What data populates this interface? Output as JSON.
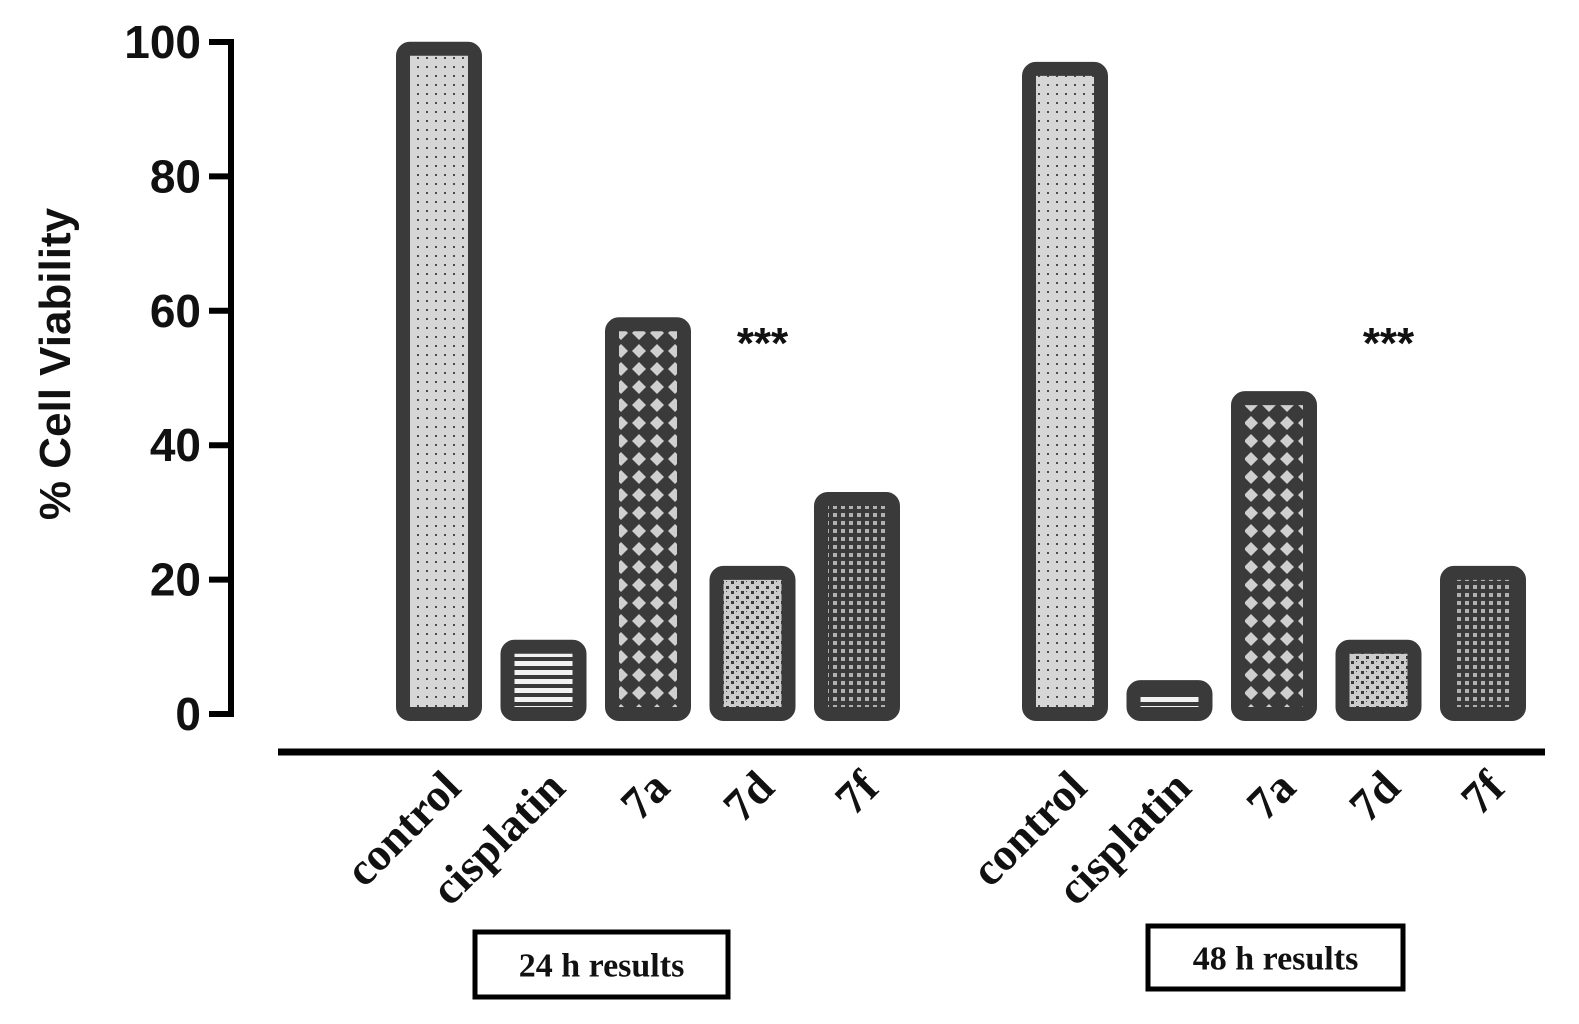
{
  "chart_data": {
    "type": "bar",
    "title": "",
    "xlabel": "",
    "ylabel": "% Cell Viability",
    "ylim": [
      0,
      100
    ],
    "yticks": [
      "0",
      "20",
      "40",
      "60",
      "80",
      "100"
    ],
    "categories": [
      "control",
      "cisplatin",
      "7a",
      "7d",
      "7f"
    ],
    "groups": [
      {
        "name": "24 h results",
        "significance": "***",
        "values": [
          99,
          10,
          58,
          21,
          32
        ],
        "patterns": [
          "dots",
          "stripes",
          "lattice",
          "speckle",
          "grid"
        ]
      },
      {
        "name": "48 h results",
        "significance": "***",
        "values": [
          96,
          4,
          47,
          10,
          21
        ],
        "patterns": [
          "dots",
          "stripes",
          "lattice",
          "speckle",
          "grid"
        ]
      }
    ],
    "legend": "none",
    "grid": false
  },
  "colors": {
    "bar_outline": "#3a3a3a",
    "bar_fill": "#d6d6d6",
    "pattern_ink": "#3a3a3a",
    "axis": "#000000",
    "text": "#111111"
  }
}
